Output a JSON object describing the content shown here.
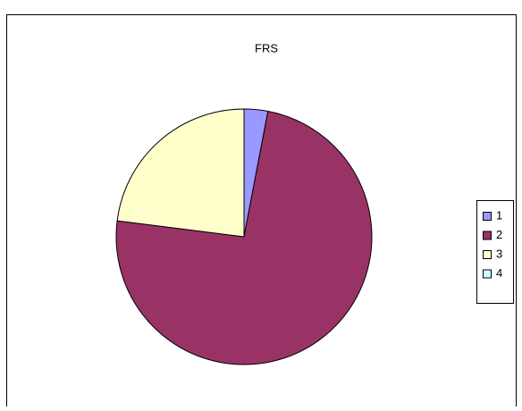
{
  "chart_data": {
    "type": "pie",
    "title": "FRS",
    "categories": [
      "1",
      "2",
      "3",
      "4"
    ],
    "values": [
      3,
      74,
      23,
      0
    ],
    "colors": [
      "#9999ff",
      "#993366",
      "#ffffcc",
      "#ccffff"
    ],
    "legend": "right"
  }
}
